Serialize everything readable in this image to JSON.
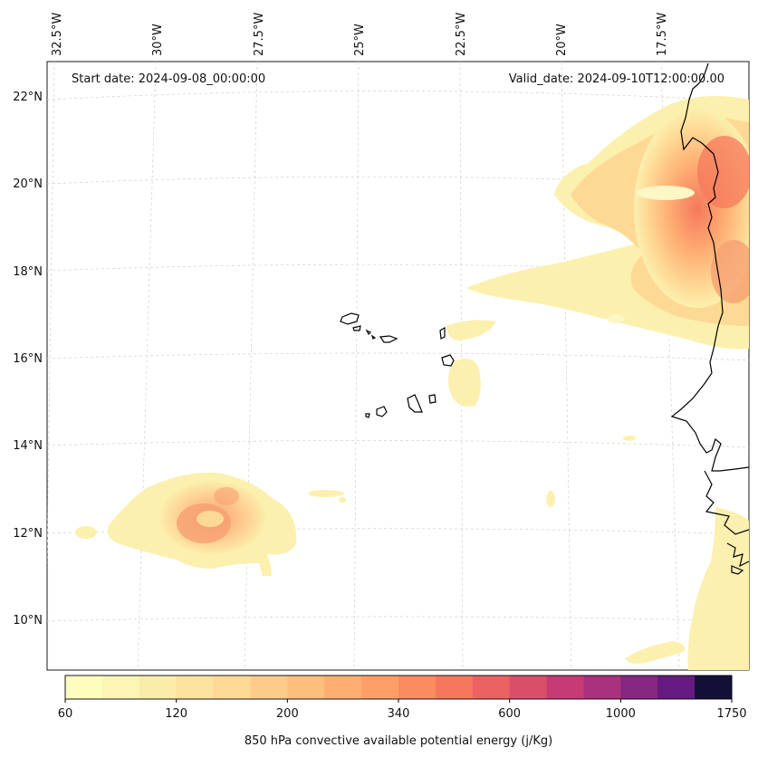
{
  "header": {
    "start_date": "Start date: 2024-09-08_00:00:00",
    "valid_date": "Valid_date: 2024-09-10T12:00:00.00"
  },
  "axes": {
    "lon_labels": [
      "32.5°W",
      "30°W",
      "27.5°W",
      "25°W",
      "22.5°W",
      "20°W",
      "17.5°W"
    ],
    "lat_labels": [
      "22°N",
      "20°N",
      "18°N",
      "16°N",
      "14°N",
      "12°N",
      "10°N"
    ],
    "gridlines": true
  },
  "colorbar": {
    "label": "850 hPa convective available potential energy (j/Kg)",
    "tick_labels": [
      "60",
      "120",
      "200",
      "340",
      "600",
      "1000",
      "1750"
    ],
    "colors": [
      "#fcfdbf",
      "#fcf5b5",
      "#fcecaa",
      "#fde3a0",
      "#fed995",
      "#fecc8a",
      "#febe7e",
      "#feae73",
      "#fe9f6a",
      "#fa8c60",
      "#f6785c",
      "#ec6262",
      "#db4e6a",
      "#c63b74",
      "#a8327d",
      "#862781",
      "#651a80",
      "#131038"
    ]
  },
  "chart_data": {
    "type": "heatmap",
    "variable": "850 hPa convective available potential energy",
    "units": "j/Kg",
    "levels_labeled": [
      60,
      120,
      200,
      340,
      600,
      1000,
      1750
    ]
  }
}
